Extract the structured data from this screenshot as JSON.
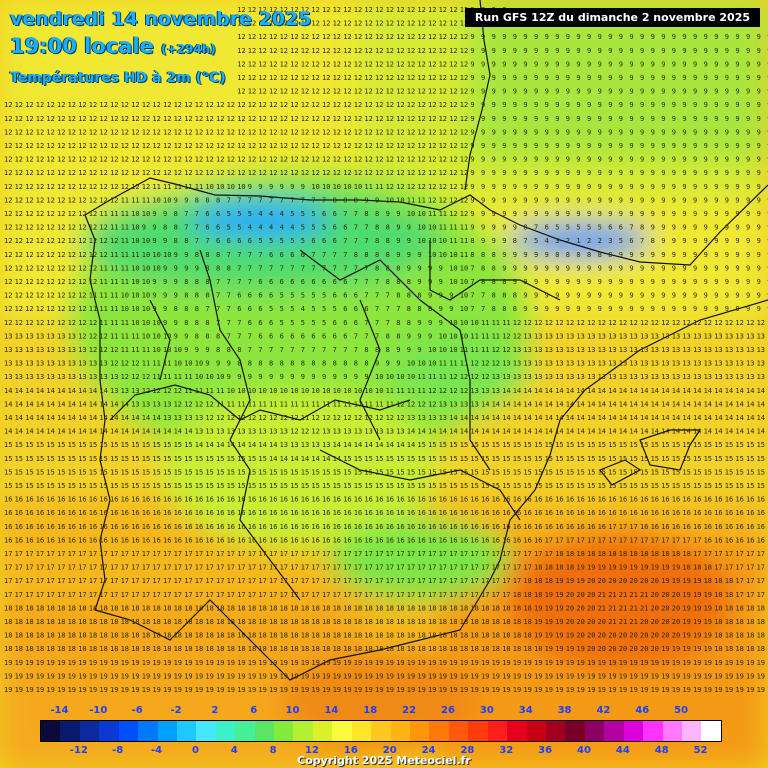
{
  "header": {
    "date": "vendredi 14 novembre 2025",
    "time": "19:00 locale",
    "lead": "(+294h)",
    "variable": "Températures HD à 2m (°C)"
  },
  "run_label": "Run GFS 12Z du dimanche 2 novembre 2025",
  "legend": {
    "top_labels": [
      "-14",
      "-10",
      "-6",
      "-2",
      "2",
      "6",
      "10",
      "14",
      "18",
      "22",
      "26",
      "30",
      "34",
      "38",
      "42",
      "46",
      "50"
    ],
    "bottom_labels": [
      "-12",
      "-8",
      "-4",
      "0",
      "4",
      "8",
      "12",
      "16",
      "20",
      "24",
      "28",
      "32",
      "36",
      "40",
      "44",
      "48",
      "52"
    ],
    "colors": [
      "#0a0a3c",
      "#0a1a6e",
      "#0a2a9e",
      "#0a3ad2",
      "#0050ff",
      "#0078ff",
      "#00a0ff",
      "#1ec8ff",
      "#46e6ff",
      "#3cf0c8",
      "#46f096",
      "#5ae664",
      "#82eb3c",
      "#b4f032",
      "#dcf028",
      "#fafa3c",
      "#ffe628",
      "#ffc81e",
      "#ffb414",
      "#ff960a",
      "#ff780a",
      "#ff5a0a",
      "#ff3c0a",
      "#ff1e1e",
      "#e6001e",
      "#c80014",
      "#a0001e",
      "#780028",
      "#8c0064",
      "#b400a0",
      "#dc00dc",
      "#ff32ff",
      "#ff78ff",
      "#ffb4ff",
      "#ffffff"
    ]
  },
  "copyright": "Copyright 2025 Meteociel.fr"
}
